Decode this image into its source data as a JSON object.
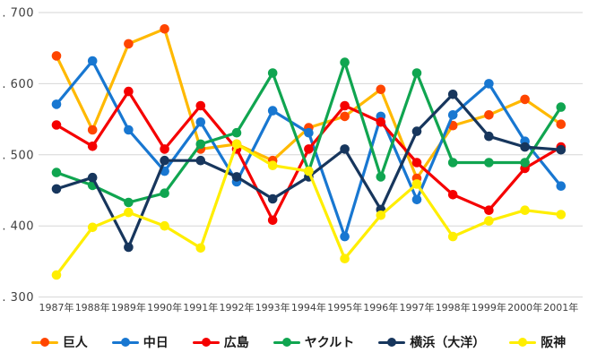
{
  "chart_data": {
    "type": "line",
    "title": "",
    "xlabel": "",
    "ylabel": "",
    "grid": true,
    "legend_position": "bottom",
    "x": [
      "1987年",
      "1988年",
      "1989年",
      "1990年",
      "1991年",
      "1992年",
      "1993年",
      "1994年",
      "1995年",
      "1996年",
      "1997年",
      "1998年",
      "1999年",
      "2000年",
      "2001年"
    ],
    "y_axis": {
      "ticks": [
        ". 700",
        ". 600",
        ". 500",
        ". 400",
        ". 300"
      ],
      "tick_values": [
        0.7,
        0.6,
        0.5,
        0.4,
        0.3
      ],
      "min": 0.3,
      "max": 0.7
    },
    "series": [
      {
        "key": "giants",
        "name": "巨人",
        "line_color": "#FFB900",
        "marker_color": "#FF4500",
        "values": [
          0.639,
          0.535,
          0.656,
          0.677,
          0.508,
          0.515,
          0.492,
          0.538,
          0.554,
          0.592,
          0.467,
          0.541,
          0.556,
          0.578,
          0.543
        ]
      },
      {
        "key": "chunichi",
        "name": "中日",
        "line_color": "#1877D1",
        "marker_color": "#1877D1",
        "values": [
          0.571,
          0.632,
          0.535,
          0.477,
          0.546,
          0.462,
          0.562,
          0.531,
          0.385,
          0.554,
          0.437,
          0.556,
          0.6,
          0.519,
          0.456
        ]
      },
      {
        "key": "hiroshima",
        "name": "広島",
        "line_color": "#F50000",
        "marker_color": "#F50000",
        "values": [
          0.542,
          0.512,
          0.589,
          0.508,
          0.569,
          0.508,
          0.408,
          0.508,
          0.569,
          0.546,
          0.489,
          0.444,
          0.422,
          0.481,
          0.511
        ]
      },
      {
        "key": "yakult",
        "name": "ヤクルト",
        "line_color": "#10A550",
        "marker_color": "#10A550",
        "values": [
          0.475,
          0.457,
          0.433,
          0.446,
          0.515,
          0.531,
          0.615,
          0.477,
          0.63,
          0.469,
          0.615,
          0.489,
          0.489,
          0.489,
          0.567
        ]
      },
      {
        "key": "yokohama",
        "name": "横浜（大洋）",
        "line_color": "#17365D",
        "marker_color": "#17365D",
        "values": [
          0.452,
          0.468,
          0.37,
          0.492,
          0.492,
          0.469,
          0.438,
          0.469,
          0.508,
          0.423,
          0.533,
          0.585,
          0.526,
          0.511,
          0.507
        ]
      },
      {
        "key": "hanshin",
        "name": "阪神",
        "line_color": "#FFEE00",
        "marker_color": "#FFEE00",
        "values": [
          0.331,
          0.398,
          0.419,
          0.4,
          0.369,
          0.515,
          0.485,
          0.477,
          0.354,
          0.415,
          0.459,
          0.385,
          0.407,
          0.422,
          0.416
        ]
      }
    ]
  }
}
